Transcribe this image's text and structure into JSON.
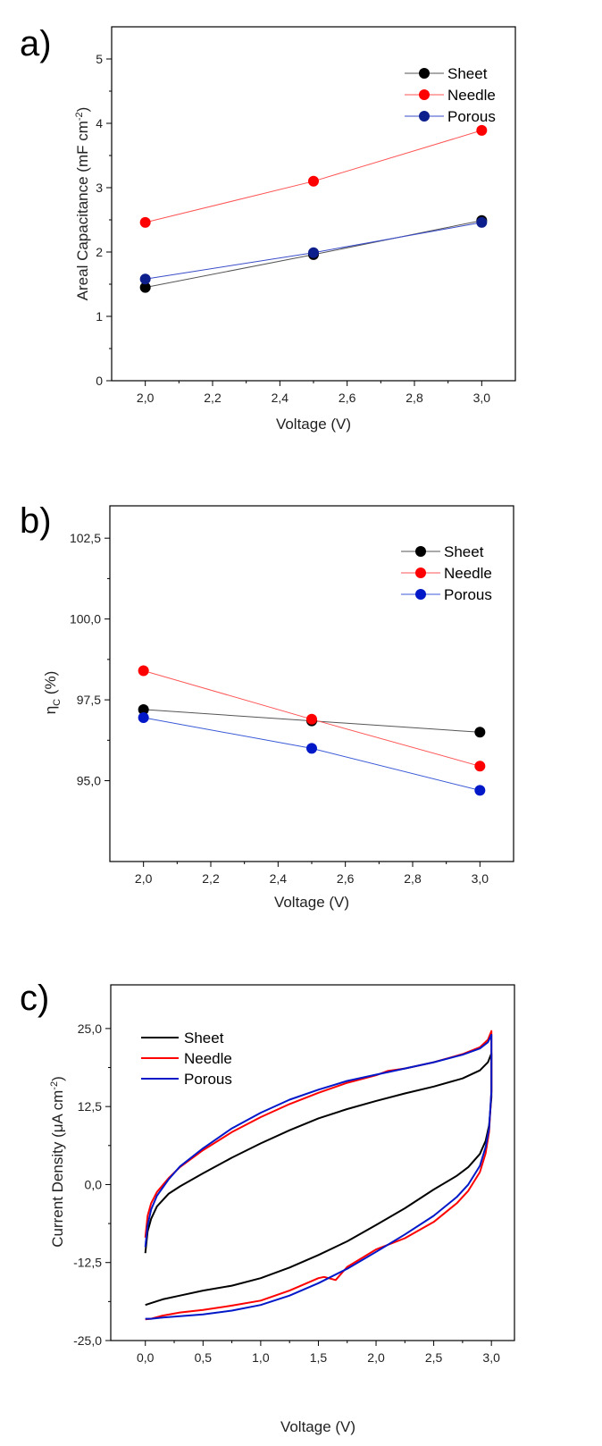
{
  "panels": [
    {
      "label": "a)"
    },
    {
      "label": "b)"
    },
    {
      "label": "c)"
    }
  ],
  "chart_data": [
    {
      "type": "line",
      "title": "",
      "xlabel": "Voltage (V)",
      "ylabel_main": "Areal Capacitance (mF cm",
      "ylabel_sup": "-2",
      "ylabel_end": ")",
      "xlim": [
        1.9,
        3.1
      ],
      "ylim": [
        0,
        5.5
      ],
      "xticks": [
        2.0,
        2.2,
        2.4,
        2.6,
        2.8,
        3.0
      ],
      "xtick_labels": [
        "2,0",
        "2,2",
        "2,4",
        "2,6",
        "2,8",
        "3,0"
      ],
      "yticks": [
        0,
        1,
        2,
        3,
        4,
        5
      ],
      "ytick_labels": [
        "0",
        "1",
        "2",
        "3",
        "4",
        "5"
      ],
      "legend_position": "top-right",
      "grid": false,
      "x": [
        2.0,
        2.5,
        3.0
      ],
      "series": [
        {
          "name": "Sheet",
          "values": [
            1.45,
            1.96,
            2.49
          ],
          "color": "#000000",
          "line_color": "#555555"
        },
        {
          "name": "Needle",
          "values": [
            2.46,
            3.1,
            3.89
          ],
          "color": "#ff0000",
          "line_color": "#ff5555"
        },
        {
          "name": "Porous",
          "values": [
            1.58,
            1.99,
            2.46
          ],
          "color": "#0d1f8c",
          "line_color": "#3a4cc8"
        }
      ]
    },
    {
      "type": "line",
      "title": "",
      "xlabel": "Voltage (V)",
      "ylabel_main": "η",
      "ylabel_sub": "C",
      "ylabel_end": " (%)",
      "xlim": [
        1.9,
        3.1
      ],
      "ylim": [
        92.5,
        103.5
      ],
      "xticks": [
        2.0,
        2.2,
        2.4,
        2.6,
        2.8,
        3.0
      ],
      "xtick_labels": [
        "2,0",
        "2,2",
        "2,4",
        "2,6",
        "2,8",
        "3,0"
      ],
      "yticks": [
        95.0,
        97.5,
        100.0,
        102.5
      ],
      "ytick_labels": [
        "95,0",
        "97,5",
        "100,0",
        "102,5"
      ],
      "legend_position": "top-right",
      "grid": false,
      "x": [
        2.0,
        2.5,
        3.0
      ],
      "series": [
        {
          "name": "Sheet",
          "values": [
            97.2,
            96.85,
            96.5
          ],
          "color": "#000000",
          "line_color": "#555555"
        },
        {
          "name": "Needle",
          "values": [
            98.4,
            96.9,
            95.45
          ],
          "color": "#ff0000",
          "line_color": "#ff5555"
        },
        {
          "name": "Porous",
          "values": [
            96.95,
            96.0,
            94.7
          ],
          "color": "#0018c8",
          "line_color": "#3a5ad8"
        }
      ]
    },
    {
      "type": "line",
      "title": "",
      "xlabel": "Voltage (V)",
      "ylabel_main": "Current Density (μA cm",
      "ylabel_sup": "-2",
      "ylabel_end": ")",
      "xlim": [
        -0.3,
        3.2
      ],
      "ylim": [
        -25,
        32
      ],
      "xticks": [
        0.0,
        0.5,
        1.0,
        1.5,
        2.0,
        2.5,
        3.0
      ],
      "xtick_labels": [
        "0,0",
        "0,5",
        "1,0",
        "1,5",
        "2,0",
        "2,5",
        "3,0"
      ],
      "yticks": [
        -25,
        -12.5,
        0,
        12.5,
        25
      ],
      "ytick_labels": [
        "-25,0",
        "-12,5",
        "0,0",
        "12,5",
        "25,0"
      ],
      "legend_position": "top-left",
      "grid": false,
      "series": [
        {
          "name": "Sheet",
          "color": "#000000",
          "x": [
            0,
            0.02,
            0.05,
            0.1,
            0.2,
            0.3,
            0.5,
            0.75,
            1.0,
            1.25,
            1.5,
            1.75,
            2.0,
            2.25,
            2.5,
            2.75,
            2.9,
            2.97,
            3.0,
            3.0,
            2.98,
            2.95,
            2.9,
            2.8,
            2.7,
            2.5,
            2.25,
            2.0,
            1.75,
            1.5,
            1.25,
            1.0,
            0.75,
            0.5,
            0.3,
            0.15,
            0.05,
            0
          ],
          "values": [
            -11,
            -7.5,
            -5.5,
            -3.5,
            -1.5,
            -0.3,
            1.8,
            4.3,
            6.6,
            8.7,
            10.6,
            12.1,
            13.4,
            14.6,
            15.7,
            17.0,
            18.3,
            19.6,
            21.0,
            14.0,
            9.5,
            7.0,
            4.9,
            2.8,
            1.4,
            -0.8,
            -3.8,
            -6.5,
            -9.1,
            -11.3,
            -13.3,
            -15.0,
            -16.2,
            -17.0,
            -17.8,
            -18.4,
            -19.0,
            -19.3
          ]
        },
        {
          "name": "Needle",
          "color": "#ff0000",
          "x": [
            0,
            0.02,
            0.05,
            0.1,
            0.2,
            0.3,
            0.5,
            0.75,
            1.0,
            1.25,
            1.5,
            1.75,
            2.0,
            2.1,
            2.25,
            2.5,
            2.75,
            2.9,
            2.97,
            3.0,
            3.0,
            2.98,
            2.95,
            2.9,
            2.8,
            2.7,
            2.5,
            2.25,
            2.0,
            1.75,
            1.65,
            1.55,
            1.5,
            1.25,
            1.0,
            0.75,
            0.5,
            0.3,
            0.15,
            0.05,
            0
          ],
          "values": [
            -8.5,
            -5,
            -3,
            -1.2,
            1.0,
            2.8,
            5.5,
            8.4,
            10.8,
            12.9,
            14.7,
            16.3,
            17.5,
            18.2,
            18.6,
            19.6,
            20.9,
            22.0,
            23.2,
            24.6,
            15.0,
            8.5,
            5.0,
            2.0,
            -1.0,
            -3.0,
            -6.0,
            -8.6,
            -10.4,
            -13.2,
            -15.3,
            -14.8,
            -15.0,
            -17.0,
            -18.6,
            -19.4,
            -20.1,
            -20.5,
            -21.0,
            -21.5,
            -21.6
          ]
        },
        {
          "name": "Porous",
          "color": "#0018c8",
          "x": [
            0,
            0.02,
            0.05,
            0.1,
            0.2,
            0.3,
            0.5,
            0.75,
            1.0,
            1.25,
            1.5,
            1.75,
            2.0,
            2.25,
            2.5,
            2.75,
            2.9,
            2.97,
            3.0,
            3.0,
            2.98,
            2.95,
            2.9,
            2.8,
            2.7,
            2.5,
            2.25,
            2.0,
            1.75,
            1.5,
            1.25,
            1.0,
            0.75,
            0.5,
            0.3,
            0.15,
            0.05,
            0
          ],
          "values": [
            -10,
            -6.5,
            -4.0,
            -1.8,
            0.8,
            2.9,
            5.8,
            9.0,
            11.5,
            13.6,
            15.2,
            16.6,
            17.6,
            18.6,
            19.6,
            20.8,
            21.8,
            22.8,
            24.0,
            15.0,
            9.0,
            6.0,
            3.0,
            0.0,
            -2.0,
            -5.0,
            -8.0,
            -10.8,
            -13.5,
            -15.8,
            -17.8,
            -19.3,
            -20.2,
            -20.8,
            -21.1,
            -21.3,
            -21.5,
            -21.5
          ]
        }
      ]
    }
  ]
}
